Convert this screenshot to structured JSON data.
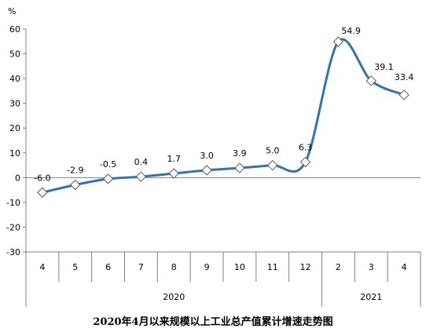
{
  "chart_data": {
    "type": "line",
    "title": "2020年4月以来规模以上工业总产值累计增速走势图",
    "unit_label": "%",
    "categories": [
      "4",
      "5",
      "6",
      "7",
      "8",
      "9",
      "10",
      "11",
      "12",
      "2",
      "3",
      "4"
    ],
    "groups": [
      {
        "label": "2020",
        "start_index": 0,
        "end_index": 8
      },
      {
        "label": "2021",
        "start_index": 9,
        "end_index": 11
      }
    ],
    "series": [
      {
        "values": [
          -6.0,
          -2.9,
          -0.5,
          0.4,
          1.7,
          3.0,
          3.9,
          5.0,
          6.3,
          54.9,
          39.1,
          33.4
        ],
        "data_labels": [
          "-6.0",
          "-2.9",
          "-0.5",
          "0.4",
          "1.7",
          "3.0",
          "3.9",
          "5.0",
          "6.3",
          "54.9",
          "39.1",
          "33.4"
        ],
        "color": "#2e75b6",
        "marker": "diamond"
      }
    ],
    "ylim": [
      -30,
      60
    ],
    "yticks": [
      -30,
      -20,
      -10,
      0,
      10,
      20,
      30,
      40,
      50,
      60
    ],
    "grid": false,
    "legend": "none"
  }
}
